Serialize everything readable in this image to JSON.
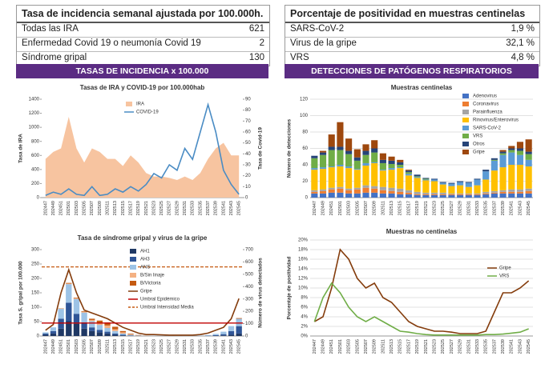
{
  "tables": [
    {
      "title": "Tasa de incidencia semanal ajustada por 100.000h.",
      "rows": [
        [
          "Todas las IRA",
          621
        ],
        [
          "Enfermedad Covid 19 o neumonía Covid 19",
          2
        ],
        [
          "Síndrome gripal",
          130
        ]
      ]
    },
    {
      "title": "Porcentaje de positividad en muestras centinelas",
      "rows": [
        [
          "SARS-CoV-2",
          "1,9 %"
        ],
        [
          "Virus de la gripe",
          "32,1 %"
        ],
        [
          "VRS",
          "4,8 %"
        ]
      ]
    }
  ],
  "headers": [
    "TASAS DE INCIDENCIA x 100.000",
    "DETECCIONES DE PATÓGENOS RESPIRATORIOS"
  ],
  "chart_data": [
    {
      "type": "combo",
      "title": "Tasas de IRA y COVID-19 por 100.000hab",
      "ylabel": "Tasa de IRA",
      "y2label": "Tasa de Covid-19",
      "grid": false,
      "legend": "upper-center",
      "categories": [
        "202447",
        "202449",
        "202451",
        "202501",
        "202503",
        "202505",
        "202507",
        "202509",
        "202511",
        "202513",
        "202515",
        "202517",
        "202519",
        "202521",
        "202523",
        "202525",
        "202527",
        "202529",
        "202531",
        "202533",
        "202535",
        "202537",
        "202539",
        "202541",
        "202543",
        "202545"
      ],
      "ylim": [
        0,
        1400
      ],
      "yticks": [
        0,
        200,
        400,
        600,
        800,
        1000,
        1200,
        1400
      ],
      "y2lim": [
        0,
        90
      ],
      "y2ticks": [
        0,
        10,
        20,
        30,
        40,
        50,
        60,
        70,
        80,
        90
      ],
      "series": [
        {
          "name": "IRA",
          "kind": "area",
          "color": "#f7c4a0",
          "values": [
            550,
            650,
            700,
            1150,
            700,
            500,
            700,
            650,
            550,
            550,
            450,
            600,
            500,
            350,
            300,
            300,
            280,
            250,
            300,
            250,
            350,
            550,
            700,
            780,
            600,
            600
          ]
        },
        {
          "name": "COVID-19",
          "kind": "line",
          "axis": "y2",
          "color": "#4a8cc4",
          "values": [
            2,
            5,
            3,
            8,
            3,
            2,
            10,
            2,
            3,
            8,
            5,
            10,
            6,
            12,
            22,
            18,
            30,
            25,
            45,
            35,
            60,
            85,
            60,
            25,
            12,
            3
          ]
        }
      ]
    },
    {
      "type": "combo",
      "title": "Tasa de síndrome gripal y virus de la gripe",
      "ylabel": "Tasa S. gripal por 100.000",
      "y2label": "Número de virus detectados",
      "grid": false,
      "legend": "center",
      "categories": [
        "202447",
        "202449",
        "202451",
        "202501",
        "202503",
        "202505",
        "202507",
        "202509",
        "202511",
        "202513",
        "202515",
        "202517",
        "202519",
        "202521",
        "202523",
        "202525",
        "202527",
        "202529",
        "202531",
        "202533",
        "202535",
        "202537",
        "202539",
        "202541",
        "202543",
        "202545"
      ],
      "ylim": [
        0,
        300
      ],
      "yticks": [
        0,
        50,
        100,
        150,
        200,
        250,
        300
      ],
      "y2lim": [
        0,
        700
      ],
      "y2ticks": [
        0,
        100,
        200,
        300,
        400,
        500,
        600,
        700
      ],
      "series": [
        {
          "name": "AH1",
          "kind": "bar",
          "axis": "y2",
          "color": "#1f3864",
          "values": [
            10,
            20,
            60,
            120,
            100,
            60,
            40,
            30,
            20,
            10,
            5,
            2,
            1,
            0,
            0,
            0,
            0,
            0,
            0,
            0,
            0,
            0,
            2,
            5,
            10,
            20
          ]
        },
        {
          "name": "AH3",
          "kind": "bar",
          "axis": "y2",
          "color": "#2f5597",
          "values": [
            10,
            20,
            80,
            150,
            80,
            50,
            30,
            20,
            15,
            10,
            5,
            2,
            1,
            0,
            0,
            0,
            0,
            0,
            0,
            0,
            1,
            2,
            5,
            10,
            30,
            60
          ]
        },
        {
          "name": "ANS",
          "kind": "bar",
          "axis": "y2",
          "color": "#9dc3e6",
          "values": [
            10,
            30,
            80,
            150,
            120,
            80,
            50,
            40,
            30,
            20,
            10,
            5,
            2,
            1,
            1,
            1,
            1,
            1,
            1,
            1,
            2,
            5,
            10,
            20,
            40,
            60
          ]
        },
        {
          "name": "B/Sin linaje",
          "kind": "bar",
          "axis": "y2",
          "color": "#f4b183",
          "values": [
            0,
            0,
            2,
            5,
            5,
            5,
            10,
            15,
            20,
            15,
            10,
            5,
            2,
            0,
            0,
            0,
            0,
            0,
            0,
            0,
            0,
            0,
            0,
            0,
            0,
            0
          ]
        },
        {
          "name": "B/Victoria",
          "kind": "bar",
          "axis": "y2",
          "color": "#c55a11",
          "values": [
            0,
            0,
            2,
            5,
            5,
            5,
            10,
            20,
            25,
            20,
            10,
            5,
            2,
            1,
            0,
            0,
            0,
            0,
            0,
            0,
            0,
            0,
            0,
            0,
            0,
            5
          ]
        },
        {
          "name": "Gripe",
          "kind": "line",
          "color": "#843c0c",
          "values": [
            20,
            40,
            150,
            230,
            150,
            90,
            80,
            70,
            60,
            45,
            30,
            20,
            10,
            5,
            5,
            4,
            3,
            3,
            3,
            3,
            5,
            10,
            20,
            30,
            60,
            130
          ]
        },
        {
          "name": "Umbral Epidémico",
          "kind": "hline",
          "color": "#c00000",
          "value": 45
        },
        {
          "name": "Umbral Intensidad Media",
          "kind": "hline",
          "dash": true,
          "color": "#c55a11",
          "value": 240
        }
      ]
    },
    {
      "type": "bar",
      "stacked": true,
      "title": "Muestras centinelas",
      "ylabel": "Número de detecciones",
      "grid": true,
      "legend": "upper-right",
      "categories": [
        "202447",
        "202449",
        "202451",
        "202501",
        "202503",
        "202505",
        "202507",
        "202509",
        "202511",
        "202513",
        "202515",
        "202517",
        "202519",
        "202521",
        "202523",
        "202525",
        "202527",
        "202529",
        "202531",
        "202533",
        "202535",
        "202537",
        "202539",
        "202541",
        "202543",
        "202545"
      ],
      "ylim": [
        0,
        120
      ],
      "yticks": [
        0,
        20,
        40,
        60,
        80,
        100,
        120
      ],
      "series": [
        {
          "name": "Adenovirus",
          "kind": "bar",
          "color": "#4472c4",
          "values": [
            5,
            5,
            6,
            6,
            5,
            5,
            6,
            6,
            5,
            5,
            4,
            4,
            3,
            3,
            3,
            3,
            3,
            3,
            3,
            3,
            4,
            5,
            5,
            5,
            5,
            5
          ]
        },
        {
          "name": "Coronavirus",
          "kind": "bar",
          "color": "#ed7d31",
          "values": [
            2,
            3,
            4,
            5,
            4,
            5,
            6,
            5,
            4,
            3,
            3,
            2,
            1,
            1,
            1,
            1,
            1,
            1,
            1,
            1,
            1,
            1,
            2,
            2,
            2,
            3
          ]
        },
        {
          "name": "Parainfluenza",
          "kind": "bar",
          "color": "#a5a5a5",
          "values": [
            2,
            2,
            2,
            2,
            2,
            2,
            3,
            3,
            4,
            4,
            4,
            3,
            3,
            2,
            2,
            2,
            1,
            1,
            1,
            1,
            2,
            2,
            2,
            3,
            3,
            3
          ]
        },
        {
          "name": "Rinovirus/Enterovirus",
          "kind": "bar",
          "color": "#ffc000",
          "values": [
            25,
            25,
            25,
            25,
            25,
            22,
            24,
            28,
            20,
            22,
            25,
            18,
            17,
            15,
            14,
            10,
            9,
            10,
            8,
            10,
            15,
            25,
            28,
            30,
            30,
            27
          ]
        },
        {
          "name": "SARS-CoV-2",
          "kind": "bar",
          "color": "#5b9bd5",
          "values": [
            2,
            2,
            1,
            2,
            2,
            1,
            3,
            1,
            1,
            2,
            1,
            2,
            1,
            1,
            2,
            2,
            3,
            4,
            5,
            7,
            10,
            12,
            15,
            15,
            12,
            8
          ]
        },
        {
          "name": "VRS",
          "kind": "bar",
          "color": "#70ad47",
          "values": [
            12,
            15,
            20,
            18,
            15,
            10,
            10,
            12,
            8,
            5,
            3,
            2,
            1,
            1,
            0,
            0,
            0,
            0,
            0,
            0,
            0,
            1,
            2,
            3,
            5,
            7
          ]
        },
        {
          "name": "Otros",
          "kind": "bar",
          "color": "#264478",
          "values": [
            3,
            3,
            4,
            4,
            4,
            4,
            5,
            5,
            4,
            4,
            3,
            2,
            2,
            1,
            1,
            1,
            1,
            1,
            1,
            1,
            2,
            2,
            2,
            2,
            3,
            3
          ]
        },
        {
          "name": "Gripe",
          "kind": "bar",
          "color": "#9e480e",
          "values": [
            0,
            2,
            15,
            30,
            15,
            10,
            8,
            10,
            8,
            5,
            3,
            1,
            0,
            0,
            0,
            0,
            0,
            0,
            0,
            0,
            0,
            0,
            2,
            3,
            8,
            15
          ]
        }
      ]
    },
    {
      "type": "line",
      "title": "Muestras no centinelas",
      "ylabel": "Porcentaje de positividad",
      "grid": true,
      "legend": "right",
      "categories": [
        "202447",
        "202449",
        "202451",
        "202501",
        "202503",
        "202505",
        "202507",
        "202509",
        "202511",
        "202513",
        "202515",
        "202517",
        "202519",
        "202521",
        "202523",
        "202525",
        "202527",
        "202529",
        "202531",
        "202533",
        "202535",
        "202537",
        "202539",
        "202541",
        "202543",
        "202545"
      ],
      "ylim": [
        0,
        20
      ],
      "yticks": [
        {
          "value": 0,
          "label": "0%"
        },
        {
          "value": 2,
          "label": "2%"
        },
        {
          "value": 4,
          "label": "4%"
        },
        {
          "value": 6,
          "label": "6%"
        },
        {
          "value": 8,
          "label": "8%"
        },
        {
          "value": 10,
          "label": "10%"
        },
        {
          "value": 12,
          "label": "12%"
        },
        {
          "value": 14,
          "label": "14%"
        },
        {
          "value": 16,
          "label": "16%"
        },
        {
          "value": 18,
          "label": "18%"
        },
        {
          "value": 20,
          "label": "20%"
        }
      ],
      "series": [
        {
          "name": "Gripe",
          "kind": "line",
          "color": "#843c0c",
          "values": [
            3,
            4,
            10,
            18,
            16,
            12,
            10,
            11,
            8,
            7,
            5,
            3,
            2,
            1.5,
            1,
            1,
            0.8,
            0.5,
            0.5,
            0.5,
            1,
            5,
            9,
            9,
            10,
            11.5
          ]
        },
        {
          "name": "VRS",
          "kind": "line",
          "color": "#70ad47",
          "values": [
            3,
            8,
            11,
            9,
            6,
            4,
            3,
            4,
            3,
            2,
            1,
            0.8,
            0.5,
            0.3,
            0.2,
            0.2,
            0.2,
            0.2,
            0.2,
            0.2,
            0.3,
            0.3,
            0.4,
            0.6,
            0.8,
            1.5
          ]
        }
      ]
    }
  ]
}
